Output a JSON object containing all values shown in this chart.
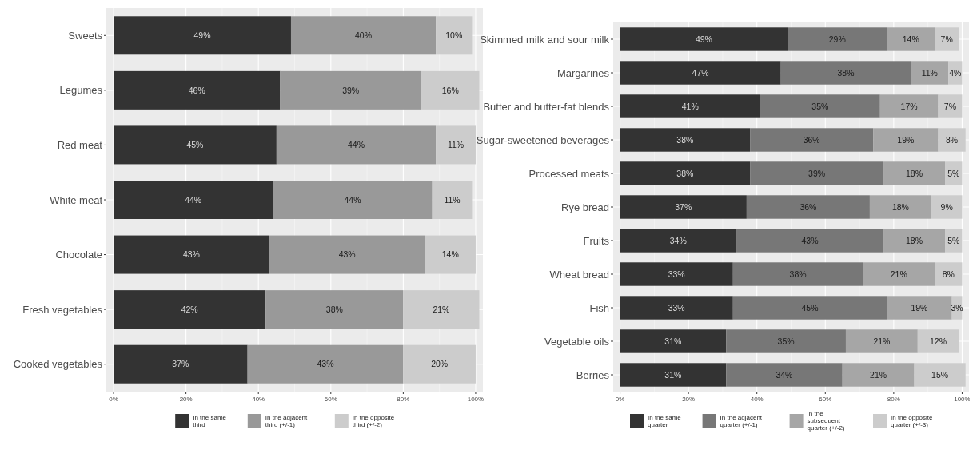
{
  "chart_data": [
    {
      "type": "bar",
      "orientation": "horizontal",
      "stacked": true,
      "categories": [
        "Sweets",
        "Legumes",
        "Red meat",
        "White meat",
        "Chocolate",
        "Fresh vegetables",
        "Cooked vegetables"
      ],
      "series": [
        {
          "name": "In the same third",
          "color": "#333333",
          "values": [
            49,
            46,
            45,
            44,
            43,
            42,
            37
          ],
          "value_labels": [
            "49%",
            "46%",
            "45%",
            "44%",
            "43%",
            "42%",
            "37%"
          ]
        },
        {
          "name": "In the adjacent third (+/-1)",
          "color": "#999999",
          "values": [
            40,
            39,
            44,
            44,
            43,
            38,
            43
          ],
          "value_labels": [
            "40%",
            "39%",
            "44%",
            "44%",
            "43%",
            "38%",
            "43%"
          ]
        },
        {
          "name": "In the opposite third (+/-2)",
          "color": "#cccccc",
          "values": [
            10,
            16,
            11,
            11,
            14,
            21,
            20
          ],
          "value_labels": [
            "10%",
            "16%",
            "11%",
            "11%",
            "14%",
            "21%",
            "20%"
          ]
        }
      ],
      "xlim": [
        -2,
        102
      ],
      "xticks": [
        {
          "value": 0,
          "label": "0%"
        },
        {
          "value": 20,
          "label": "20%"
        },
        {
          "value": 40,
          "label": "40%"
        },
        {
          "value": 60,
          "label": "60%"
        },
        {
          "value": 80,
          "label": "80%"
        },
        {
          "value": 100,
          "label": "100%"
        }
      ],
      "grid": "x",
      "legend": "bottom"
    },
    {
      "type": "bar",
      "orientation": "horizontal",
      "stacked": true,
      "categories": [
        "Skimmed milk and sour milk",
        "Margarines",
        "Butter and butter-fat blends",
        "Sugar-sweetened beverages",
        "Processed meats",
        "Rye bread",
        "Fruits",
        "Wheat bread",
        "Fish",
        "Vegetable oils",
        "Berries"
      ],
      "series": [
        {
          "name": "In the same quarter",
          "color": "#333333",
          "values": [
            49,
            47,
            41,
            38,
            38,
            37,
            34,
            33,
            33,
            31,
            31
          ],
          "value_labels": [
            "49%",
            "47%",
            "41%",
            "38%",
            "38%",
            "37%",
            "34%",
            "33%",
            "33%",
            "31%",
            "31%"
          ]
        },
        {
          "name": "In the adjacent quarter (+/-1)",
          "color": "#777777",
          "values": [
            29,
            38,
            35,
            36,
            39,
            36,
            43,
            38,
            45,
            35,
            34
          ],
          "value_labels": [
            "29%",
            "38%",
            "35%",
            "36%",
            "39%",
            "36%",
            "43%",
            "38%",
            "45%",
            "35%",
            "34%"
          ]
        },
        {
          "name": "In the subsequent quarter (+/-2)",
          "color": "#a6a6a6",
          "values": [
            14,
            11,
            17,
            19,
            18,
            18,
            18,
            21,
            19,
            21,
            21
          ],
          "value_labels": [
            "14%",
            "11%",
            "17%",
            "19%",
            "18%",
            "18%",
            "18%",
            "21%",
            "19%",
            "21%",
            "21%"
          ]
        },
        {
          "name": "In the opposite quarter (+/-3)",
          "color": "#cccccc",
          "values": [
            7,
            4,
            7,
            8,
            5,
            9,
            5,
            8,
            3,
            12,
            15
          ],
          "value_labels": [
            "7%",
            "4%",
            "7%",
            "8%",
            "5%",
            "9%",
            "5%",
            "8%",
            "3%",
            "12%",
            "15%"
          ]
        }
      ],
      "xlim": [
        -2,
        102
      ],
      "xticks": [
        {
          "value": 0,
          "label": "0%"
        },
        {
          "value": 20,
          "label": "20%"
        },
        {
          "value": 40,
          "label": "40%"
        },
        {
          "value": 60,
          "label": "60%"
        },
        {
          "value": 80,
          "label": "80%"
        },
        {
          "value": 100,
          "label": "100%"
        }
      ],
      "grid": "x",
      "legend": "bottom"
    }
  ]
}
